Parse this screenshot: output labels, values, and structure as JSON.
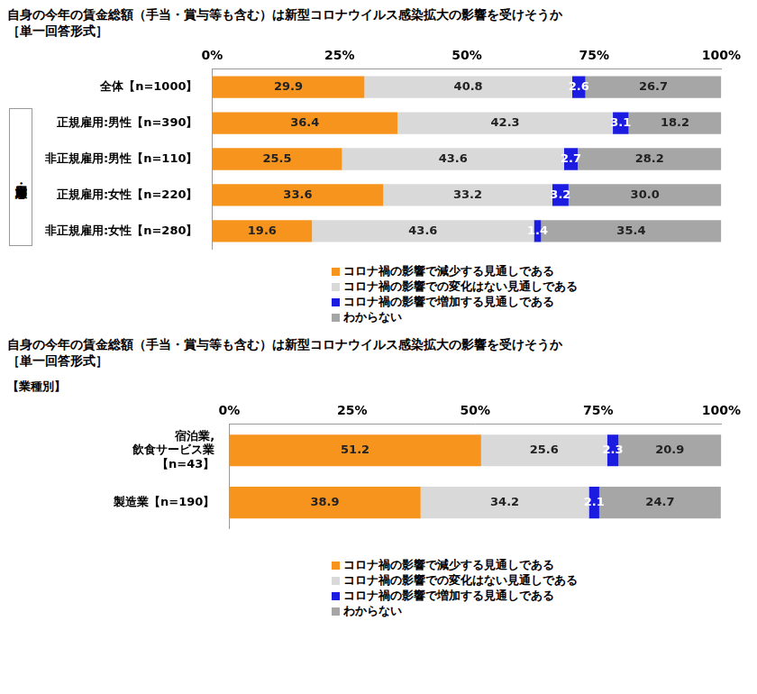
{
  "chart_data": [
    {
      "type": "bar",
      "orientation": "horizontal",
      "stacked": true,
      "data_labels": true,
      "grid": false,
      "legend": "bottom",
      "title": "自身の今年の賃金総額（手当・賞与等も含む）は新型コロナウイルス感染拡大の影響を受けそうか",
      "subtitle": "［単一回答形式］",
      "group_label": "男女・雇用形態別",
      "categories": [
        "全体【n=1000】",
        "正規雇用:男性【n=390】",
        "非正規雇用:男性【n=110】",
        "正規雇用:女性【n=220】",
        "非正規雇用:女性【n=280】"
      ],
      "xlim": [
        0,
        100
      ],
      "xticks": [
        {
          "value": 0,
          "label": "0%"
        },
        {
          "value": 25,
          "label": "25%"
        },
        {
          "value": 50,
          "label": "50%"
        },
        {
          "value": 75,
          "label": "75%"
        },
        {
          "value": 100,
          "label": "100%"
        }
      ],
      "series": [
        {
          "name": "コロナ禍の影響で減少する見通しである",
          "color": "#f7941d",
          "values": [
            29.9,
            36.4,
            25.5,
            33.6,
            19.6
          ],
          "value_labels": [
            "29.9",
            "36.4",
            "25.5",
            "33.6",
            "19.6"
          ]
        },
        {
          "name": "コロナ禍の影響での変化はない見通しである",
          "color": "#d9d9d9",
          "values": [
            40.8,
            42.3,
            43.6,
            33.2,
            43.6
          ],
          "value_labels": [
            "40.8",
            "42.3",
            "43.6",
            "33.2",
            "43.6"
          ]
        },
        {
          "name": "コロナ禍の影響で増加する見通しである",
          "color": "#1c1ce0",
          "values": [
            2.6,
            3.1,
            2.7,
            3.2,
            1.4
          ],
          "value_labels": [
            "2.6",
            "3.1",
            "2.7",
            "3.2",
            "1.4"
          ]
        },
        {
          "name": "わからない",
          "color": "#a6a6a6",
          "values": [
            26.7,
            18.2,
            28.2,
            30.0,
            35.4
          ],
          "value_labels": [
            "26.7",
            "18.2",
            "28.2",
            "30.0",
            "35.4"
          ]
        }
      ]
    },
    {
      "type": "bar",
      "orientation": "horizontal",
      "stacked": true,
      "data_labels": true,
      "grid": false,
      "legend": "bottom",
      "title": "自身の今年の賃金総額（手当・賞与等も含む）は新型コロナウイルス感染拡大の影響を受けそうか",
      "subtitle": "［単一回答形式］",
      "category_header": "【業種別】",
      "categories": [
        [
          "宿泊業,",
          "飲食サービス業",
          "【n=43】"
        ],
        "製造業【n=190】"
      ],
      "xlim": [
        0,
        100
      ],
      "xticks": [
        {
          "value": 0,
          "label": "0%"
        },
        {
          "value": 25,
          "label": "25%"
        },
        {
          "value": 50,
          "label": "50%"
        },
        {
          "value": 75,
          "label": "75%"
        },
        {
          "value": 100,
          "label": "100%"
        }
      ],
      "series": [
        {
          "name": "コロナ禍の影響で減少する見通しである",
          "color": "#f7941d",
          "values": [
            51.2,
            38.9
          ],
          "value_labels": [
            "51.2",
            "38.9"
          ]
        },
        {
          "name": "コロナ禍の影響での変化はない見通しである",
          "color": "#d9d9d9",
          "values": [
            25.6,
            34.2
          ],
          "value_labels": [
            "25.6",
            "34.2"
          ]
        },
        {
          "name": "コロナ禍の影響で増加する見通しである",
          "color": "#1c1ce0",
          "values": [
            2.3,
            2.1
          ],
          "value_labels": [
            "2.3",
            "2.1"
          ]
        },
        {
          "name": "わからない",
          "color": "#a6a6a6",
          "values": [
            20.9,
            24.7
          ],
          "value_labels": [
            "20.9",
            "24.7"
          ]
        }
      ]
    }
  ]
}
